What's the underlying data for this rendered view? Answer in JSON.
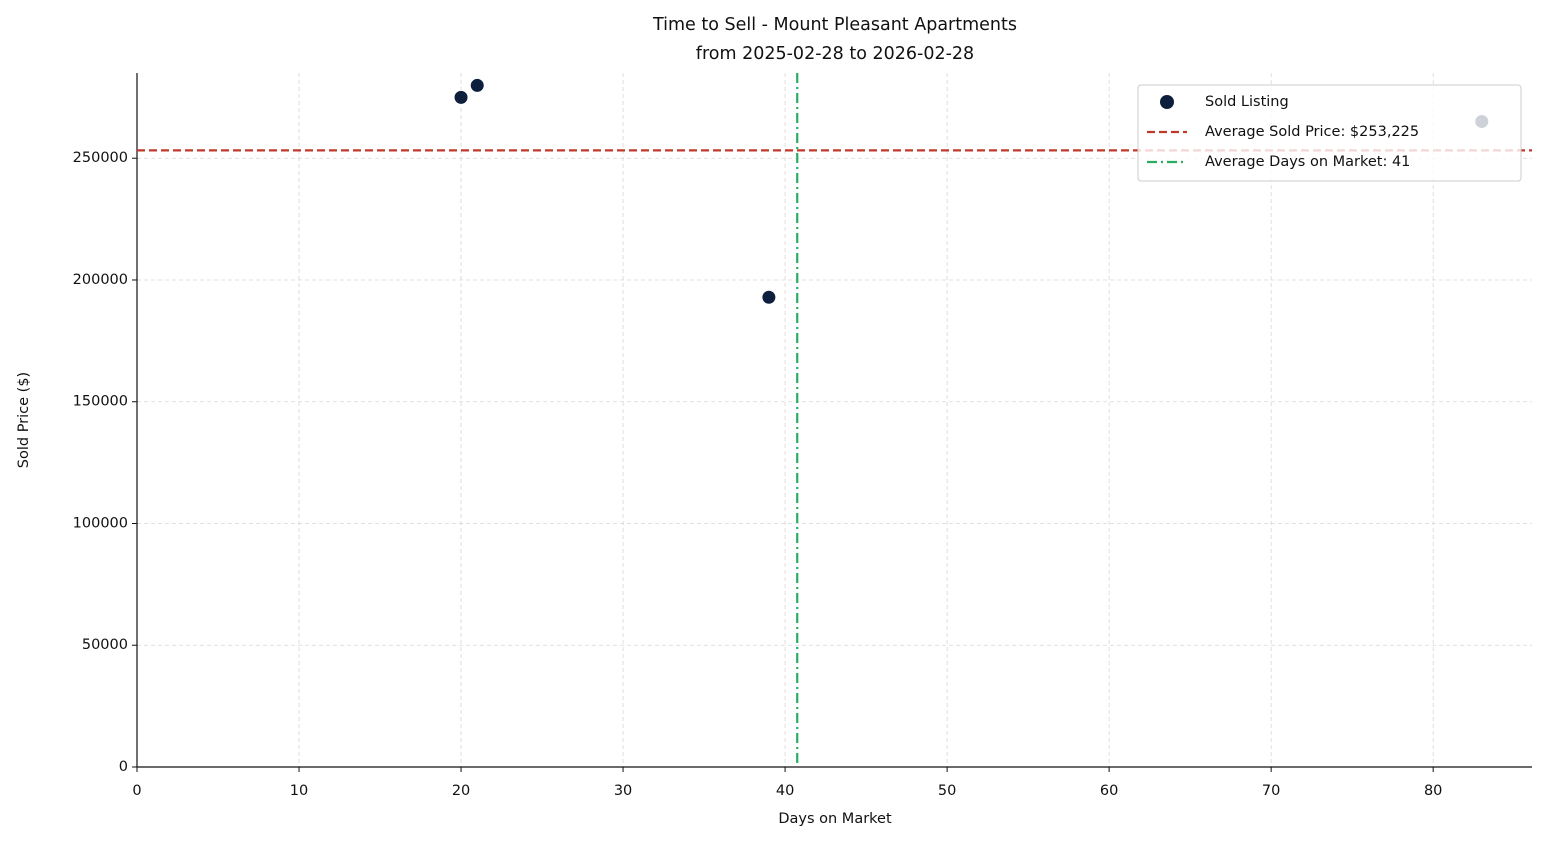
{
  "chart_data": {
    "type": "scatter",
    "title": "Time to Sell - Mount Pleasant Apartments",
    "subtitle": "from 2025-02-28 to 2026-02-28",
    "x_label": "Days on Market",
    "y_label": "Sold Price ($)",
    "series": [
      {
        "name": "Sold Listing",
        "color": "#0d1f3c",
        "x": [
          20,
          21,
          39,
          83
        ],
        "values": [
          275000,
          279900,
          192900,
          265100
        ]
      }
    ],
    "reference_lines": [
      {
        "name": "Average Sold Price: $253,225",
        "orientation": "horizontal",
        "value": 253225,
        "color": "#c0392b",
        "style": "dashed"
      },
      {
        "name": "Average Days on Market: 41",
        "orientation": "vertical",
        "value": 40.75,
        "color": "#27ae60",
        "style": "dashdot"
      }
    ],
    "xlim": [
      0,
      86.1
    ],
    "ylim": [
      0,
      285000
    ],
    "xticks": [
      0,
      10,
      20,
      30,
      40,
      50,
      60,
      70,
      80
    ],
    "yticks": [
      0,
      50000,
      100000,
      150000,
      200000,
      250000
    ],
    "grid": true,
    "legend": "upper right"
  }
}
